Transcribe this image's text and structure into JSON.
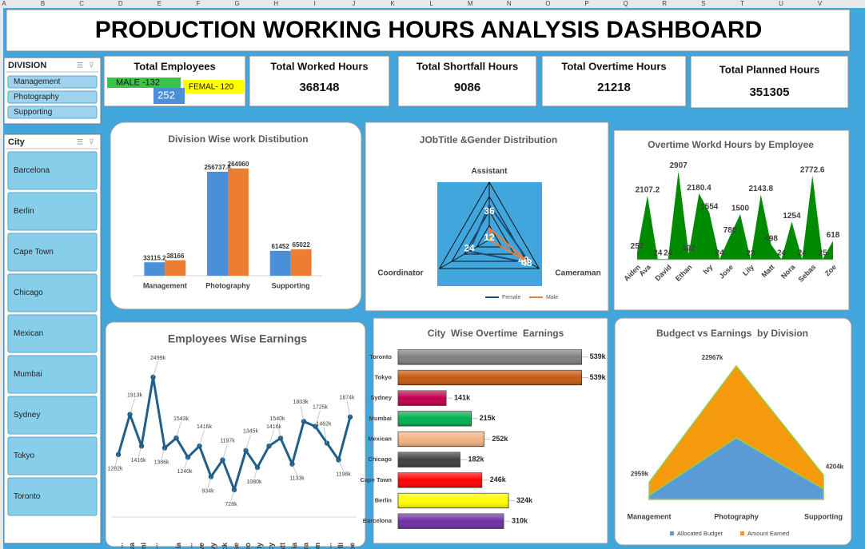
{
  "sheet": {
    "columns": [
      "A",
      "B",
      "C",
      "D",
      "E",
      "F",
      "G",
      "H",
      "I",
      "J",
      "K",
      "L",
      "M",
      "N",
      "O",
      "P",
      "Q",
      "R",
      "S",
      "T",
      "U",
      "V"
    ]
  },
  "header": {
    "title": "PRODUCTION WORKING HOURS ANALYSIS DASHBOARD"
  },
  "slicers": [
    {
      "title": "DIVISION",
      "items": [
        "Management",
        "Photography",
        "Supporting"
      ]
    },
    {
      "title": "City",
      "items": [
        "Barcelona",
        "Berlin",
        "Cape Town",
        "Chicago",
        "Mexican",
        "Mumbai",
        "Sydney",
        "Tokyo",
        "Toronto"
      ]
    }
  ],
  "kpis": [
    {
      "label": "Total Employees",
      "male": "MALE  -132",
      "female": "FEMAL- 120",
      "total": 252
    },
    {
      "label": "Total Worked Hours",
      "value": 368148
    },
    {
      "label": "Total Shortfall Hours",
      "value": 9086
    },
    {
      "label": "Total Overtime Hours",
      "value": 21218
    },
    {
      "label": "Total Planned Hours",
      "value": 351305
    }
  ],
  "chart_data": [
    {
      "type": "bar",
      "title": "Division Wise work Distibution",
      "categories": [
        "Management",
        "Photography",
        "Supporting"
      ],
      "series": [
        {
          "color": "#4a90d9",
          "values": [
            33115.2,
            256737.8,
            61452
          ]
        },
        {
          "color": "#ed7d31",
          "values": [
            38166,
            264960,
            65022
          ]
        }
      ],
      "ylim": [
        0,
        300000
      ]
    },
    {
      "type": "radar",
      "title": "JObTitle &Gender Distribution",
      "categories": [
        "Assistant",
        "Cameraman",
        "Coordinator"
      ],
      "series": [
        {
          "name": "Female",
          "color": "#1f4e79",
          "values": [
            36,
            49,
            24
          ]
        },
        {
          "name": "Male",
          "color": "#ed7d31",
          "values": [
            12,
            48,
            0
          ]
        }
      ],
      "rlim": [
        0,
        60
      ],
      "legend": "bottom"
    },
    {
      "type": "area",
      "title": "Overtime Workd Hours by Employee",
      "categories": [
        "Aiden",
        "Ava",
        null,
        "David",
        null,
        "Ethan",
        null,
        "Ivy",
        null,
        "Jose",
        null,
        "Lily",
        null,
        "Matt",
        null,
        "Nora",
        null,
        "Sebas",
        null,
        "Zoe"
      ],
      "values": [
        252,
        2107.2,
        24,
        24,
        2907,
        192,
        2180.4,
        1554,
        24,
        780,
        1500,
        23,
        2143.8,
        498,
        24,
        1254,
        24,
        2772.6,
        25,
        618
      ],
      "color": "#008a00",
      "ylim": [
        0,
        3000
      ]
    },
    {
      "type": "line",
      "title": "Employees Wise Earnings",
      "categories": [
        "Aid...",
        "Ava",
        "Dani",
        "Da...",
        null,
        "Ella",
        "Eth...",
        "Eve",
        "Ivy",
        "Jack",
        "Jose",
        "Leo",
        "Lily",
        "Lucy",
        "Matt",
        "Mia",
        "Nora",
        "Sam",
        "Se...",
        "Willi",
        "Zoe"
      ],
      "values": [
        1282000,
        1913000,
        1416000,
        2499000,
        1386000,
        1543000,
        1240000,
        1416000,
        934000,
        1197000,
        728000,
        1345000,
        1080000,
        1416000,
        1540000,
        1133000,
        1803000,
        1725000,
        1462000,
        1198000,
        1874000
      ],
      "value_labels": [
        "1282k",
        "1913k",
        "1416k",
        "2499k",
        "1386k",
        "1543k",
        "1240k",
        "1416k",
        "934k",
        "1197k",
        "728k",
        "1345k",
        "1080k",
        "1416k",
        "1540k",
        "1133k",
        "1803k",
        "1725k",
        "1462k",
        "1198k",
        "1874k"
      ],
      "color": "#1f5f8b",
      "ylim": [
        300000,
        2700000
      ]
    },
    {
      "type": "barh",
      "title": "City  Wise Overtime  Earnings",
      "categories": [
        "Toronto",
        "Tokyo",
        "Sydney",
        "Mumbai",
        "Mexican",
        "Chicago",
        "Cape Town",
        "Berlin",
        "Barcelona"
      ],
      "values": [
        539000,
        539000,
        141000,
        215000,
        252000,
        182000,
        246000,
        324000,
        310000
      ],
      "value_labels": [
        "539k",
        "539k",
        "141k",
        "215k",
        "252k",
        "182k",
        "246k",
        "324k",
        "310k"
      ],
      "colors": [
        "#7f7f7f",
        "#c55a11",
        "#c0004e",
        "#00b050",
        "#f4b183",
        "#404040",
        "#ff0000",
        "#ffff00",
        "#7030a0"
      ],
      "xlim": [
        0,
        540000
      ]
    },
    {
      "type": "area",
      "title": "Budgect vs Earnings  by Division",
      "categories": [
        "Management",
        "Photography",
        "Supporting"
      ],
      "series": [
        {
          "name": "Allocated Budget",
          "color": "#5b9bd5",
          "values": [
            700000,
            10600000,
            1800000
          ]
        },
        {
          "name": "Amount Earned",
          "color": "#f59a0c",
          "values": [
            2959000,
            22967000,
            4204000
          ],
          "value_labels": [
            "2959k",
            "22967k",
            "4204k"
          ]
        }
      ],
      "ylim": [
        0,
        25000000
      ],
      "legend": "bottom"
    }
  ]
}
